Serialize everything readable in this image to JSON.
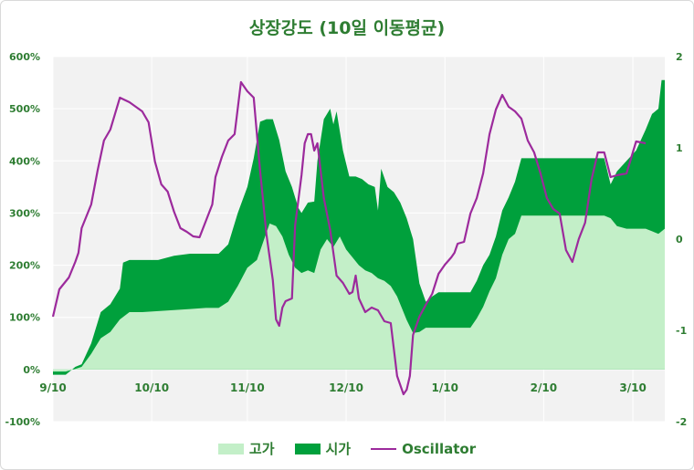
{
  "chart_data": {
    "type": "area",
    "title": "상장강도 (10일 이동평균)",
    "categories": [
      "9/10",
      "10/10",
      "11/10",
      "12/10",
      "1/10",
      "2/10",
      "3/10"
    ],
    "y_left": {
      "ticks": [
        "600%",
        "500%",
        "400%",
        "300%",
        "200%",
        "100%",
        "0%",
        "-100%"
      ],
      "range": [
        -100,
        600
      ]
    },
    "y_right": {
      "ticks": [
        "2",
        "1",
        "0",
        "-1",
        "-2"
      ],
      "range": [
        -2,
        2
      ]
    },
    "grid": true,
    "legend_position": "bottom",
    "series": [
      {
        "name": "고가",
        "color": "#c3efc8",
        "values": [
          [
            0,
            -4
          ],
          [
            4,
            -4
          ],
          [
            7,
            1
          ],
          [
            9,
            5
          ],
          [
            12,
            30
          ],
          [
            15,
            60
          ],
          [
            18,
            72
          ],
          [
            21,
            96
          ],
          [
            24,
            110
          ],
          [
            28,
            110
          ],
          [
            33,
            112
          ],
          [
            38,
            114
          ],
          [
            43,
            116
          ],
          [
            48,
            118
          ],
          [
            52,
            118
          ],
          [
            55,
            130
          ],
          [
            58,
            160
          ],
          [
            61,
            195
          ],
          [
            64,
            210
          ],
          [
            66,
            245
          ],
          [
            68,
            280
          ],
          [
            70,
            275
          ],
          [
            72,
            255
          ],
          [
            74,
            220
          ],
          [
            76,
            195
          ],
          [
            78,
            185
          ],
          [
            80,
            190
          ],
          [
            82,
            185
          ],
          [
            84,
            230
          ],
          [
            86,
            250
          ],
          [
            88,
            235
          ],
          [
            90,
            255
          ],
          [
            92,
            230
          ],
          [
            94,
            215
          ],
          [
            96,
            200
          ],
          [
            98,
            190
          ],
          [
            100,
            185
          ],
          [
            102,
            175
          ],
          [
            104,
            170
          ],
          [
            106,
            160
          ],
          [
            108,
            140
          ],
          [
            110,
            110
          ],
          [
            111,
            95
          ],
          [
            113,
            70
          ],
          [
            115,
            72
          ],
          [
            117,
            80
          ],
          [
            120,
            80
          ],
          [
            124,
            80
          ],
          [
            128,
            80
          ],
          [
            131,
            80
          ],
          [
            133,
            98
          ],
          [
            135,
            120
          ],
          [
            137,
            150
          ],
          [
            139,
            175
          ],
          [
            141,
            220
          ],
          [
            143,
            250
          ],
          [
            145,
            260
          ],
          [
            147,
            295
          ],
          [
            150,
            295
          ],
          [
            155,
            295
          ],
          [
            160,
            295
          ],
          [
            165,
            295
          ],
          [
            170,
            295
          ],
          [
            173,
            295
          ],
          [
            175,
            290
          ],
          [
            177,
            275
          ],
          [
            180,
            270
          ],
          [
            183,
            270
          ],
          [
            186,
            270
          ],
          [
            188,
            265
          ],
          [
            190,
            260
          ],
          [
            192,
            270
          ]
        ]
      },
      {
        "name": "시가",
        "color": "#00a03c",
        "values": [
          [
            0,
            -10
          ],
          [
            4,
            -10
          ],
          [
            7,
            5
          ],
          [
            9,
            10
          ],
          [
            12,
            50
          ],
          [
            15,
            110
          ],
          [
            18,
            125
          ],
          [
            21,
            155
          ],
          [
            22,
            205
          ],
          [
            24,
            210
          ],
          [
            28,
            210
          ],
          [
            33,
            210
          ],
          [
            38,
            218
          ],
          [
            43,
            222
          ],
          [
            48,
            222
          ],
          [
            52,
            222
          ],
          [
            55,
            240
          ],
          [
            58,
            300
          ],
          [
            61,
            350
          ],
          [
            63,
            405
          ],
          [
            65,
            475
          ],
          [
            67,
            480
          ],
          [
            69,
            480
          ],
          [
            71,
            440
          ],
          [
            73,
            380
          ],
          [
            75,
            350
          ],
          [
            77,
            310
          ],
          [
            78,
            300
          ],
          [
            80,
            320
          ],
          [
            82,
            322
          ],
          [
            83,
            400
          ],
          [
            85,
            480
          ],
          [
            87,
            500
          ],
          [
            88,
            470
          ],
          [
            89,
            495
          ],
          [
            91,
            420
          ],
          [
            93,
            370
          ],
          [
            95,
            370
          ],
          [
            97,
            365
          ],
          [
            99,
            355
          ],
          [
            101,
            350
          ],
          [
            102,
            305
          ],
          [
            103,
            385
          ],
          [
            105,
            350
          ],
          [
            107,
            340
          ],
          [
            109,
            320
          ],
          [
            111,
            290
          ],
          [
            113,
            250
          ],
          [
            115,
            165
          ],
          [
            117,
            130
          ],
          [
            119,
            140
          ],
          [
            121,
            148
          ],
          [
            125,
            148
          ],
          [
            129,
            148
          ],
          [
            131,
            148
          ],
          [
            133,
            170
          ],
          [
            135,
            200
          ],
          [
            137,
            220
          ],
          [
            139,
            255
          ],
          [
            141,
            305
          ],
          [
            143,
            330
          ],
          [
            145,
            360
          ],
          [
            147,
            405
          ],
          [
            150,
            405
          ],
          [
            155,
            405
          ],
          [
            160,
            405
          ],
          [
            165,
            405
          ],
          [
            170,
            405
          ],
          [
            173,
            405
          ],
          [
            175,
            355
          ],
          [
            177,
            380
          ],
          [
            180,
            400
          ],
          [
            183,
            420
          ],
          [
            186,
            460
          ],
          [
            188,
            490
          ],
          [
            190,
            500
          ],
          [
            191,
            555
          ],
          [
            192,
            555
          ]
        ]
      },
      {
        "name": "Oscillator",
        "color": "#9c2a9c",
        "axis": "right",
        "values": [
          [
            0,
            -0.85
          ],
          [
            2,
            -0.55
          ],
          [
            5,
            -0.42
          ],
          [
            7,
            -0.25
          ],
          [
            8,
            -0.15
          ],
          [
            9,
            0.12
          ],
          [
            12,
            0.38
          ],
          [
            14,
            0.75
          ],
          [
            16,
            1.08
          ],
          [
            18,
            1.2
          ],
          [
            21,
            1.55
          ],
          [
            24,
            1.5
          ],
          [
            28,
            1.4
          ],
          [
            30,
            1.28
          ],
          [
            32,
            0.85
          ],
          [
            34,
            0.6
          ],
          [
            36,
            0.52
          ],
          [
            38,
            0.3
          ],
          [
            40,
            0.12
          ],
          [
            42,
            0.08
          ],
          [
            44,
            0.03
          ],
          [
            46,
            0.02
          ],
          [
            48,
            0.2
          ],
          [
            50,
            0.38
          ],
          [
            51,
            0.68
          ],
          [
            53,
            0.9
          ],
          [
            55,
            1.08
          ],
          [
            57,
            1.15
          ],
          [
            59,
            1.72
          ],
          [
            61,
            1.62
          ],
          [
            63,
            1.55
          ],
          [
            65,
            0.75
          ],
          [
            67,
            0.05
          ],
          [
            69,
            -0.45
          ],
          [
            70,
            -0.88
          ],
          [
            71,
            -0.95
          ],
          [
            72,
            -0.75
          ],
          [
            73,
            -0.68
          ],
          [
            75,
            -0.65
          ],
          [
            76,
            0.15
          ],
          [
            78,
            0.7
          ],
          [
            79,
            1.05
          ],
          [
            80,
            1.15
          ],
          [
            81,
            1.15
          ],
          [
            82,
            0.97
          ],
          [
            83,
            1.05
          ],
          [
            85,
            0.45
          ],
          [
            87,
            0.1
          ],
          [
            89,
            -0.4
          ],
          [
            91,
            -0.48
          ],
          [
            93,
            -0.6
          ],
          [
            94,
            -0.58
          ],
          [
            95,
            -0.4
          ],
          [
            96,
            -0.65
          ],
          [
            98,
            -0.8
          ],
          [
            100,
            -0.75
          ],
          [
            102,
            -0.78
          ],
          [
            104,
            -0.9
          ],
          [
            106,
            -0.92
          ],
          [
            108,
            -1.5
          ],
          [
            110,
            -1.7
          ],
          [
            111,
            -1.65
          ],
          [
            112,
            -1.5
          ],
          [
            113,
            -1.05
          ],
          [
            115,
            -0.85
          ],
          [
            117,
            -0.72
          ],
          [
            119,
            -0.6
          ],
          [
            121,
            -0.38
          ],
          [
            123,
            -0.28
          ],
          [
            125,
            -0.2
          ],
          [
            126,
            -0.15
          ],
          [
            127,
            -0.05
          ],
          [
            129,
            -0.03
          ],
          [
            131,
            0.28
          ],
          [
            133,
            0.45
          ],
          [
            135,
            0.72
          ],
          [
            137,
            1.15
          ],
          [
            139,
            1.42
          ],
          [
            141,
            1.58
          ],
          [
            143,
            1.45
          ],
          [
            145,
            1.4
          ],
          [
            147,
            1.32
          ],
          [
            149,
            1.08
          ],
          [
            151,
            0.95
          ],
          [
            153,
            0.72
          ],
          [
            155,
            0.45
          ],
          [
            157,
            0.33
          ],
          [
            159,
            0.28
          ],
          [
            161,
            -0.12
          ],
          [
            163,
            -0.25
          ],
          [
            165,
            0.0
          ],
          [
            167,
            0.18
          ],
          [
            169,
            0.65
          ],
          [
            171,
            0.95
          ],
          [
            173,
            0.95
          ],
          [
            175,
            0.68
          ],
          [
            177,
            0.7
          ],
          [
            180,
            0.72
          ],
          [
            183,
            1.07
          ],
          [
            186,
            1.05
          ]
        ]
      }
    ],
    "x_domain": [
      0,
      192
    ],
    "x_tick_positions": [
      0,
      31,
      61,
      92,
      123,
      154,
      182
    ]
  }
}
